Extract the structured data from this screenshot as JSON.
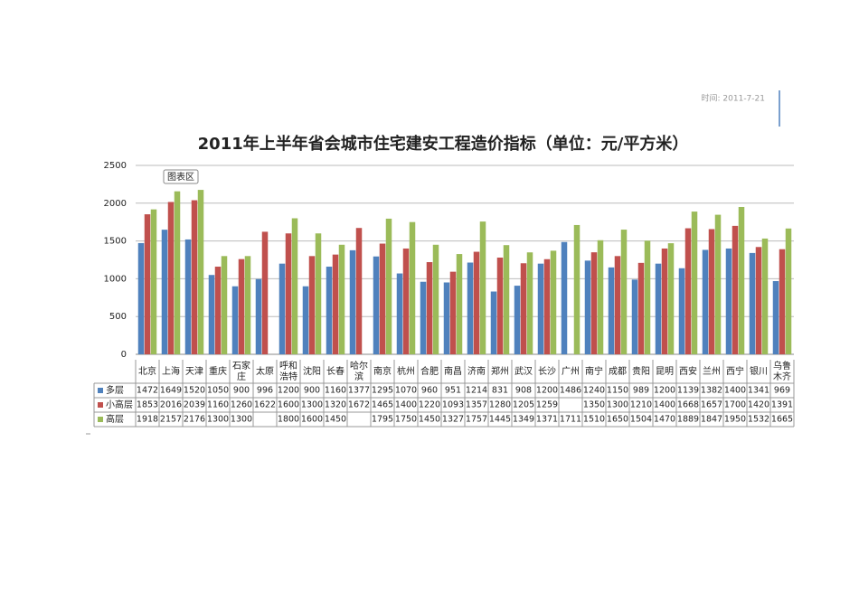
{
  "header": {
    "date": "时间: 2011-7-21"
  },
  "tooltip": "图表区",
  "chart_data": {
    "type": "bar",
    "title": "2011年上半年省会城市住宅建安工程造价指标（单位：元/平方米）",
    "categories": [
      "北京",
      "上海",
      "天津",
      "重庆",
      "石家庄",
      "太原",
      "呼和浩特",
      "沈阳",
      "长春",
      "哈尔滨",
      "南京",
      "杭州",
      "合肥",
      "南昌",
      "济南",
      "郑州",
      "武汉",
      "长沙",
      "广州",
      "南宁",
      "成都",
      "贵阳",
      "昆明",
      "西安",
      "兰州",
      "西宁",
      "银川",
      "乌鲁木齐"
    ],
    "series": [
      {
        "name": "多层",
        "color": "#4f81bd",
        "values": [
          1472,
          1649,
          1520,
          1050,
          900,
          996,
          1200,
          900,
          1160,
          1377,
          1295,
          1070,
          960,
          951,
          1214,
          831,
          908,
          1200,
          1486,
          1240,
          1150,
          989,
          1200,
          1139,
          1382,
          1400,
          1341,
          969
        ]
      },
      {
        "name": "小高层",
        "color": "#c0504d",
        "values": [
          1853,
          2016,
          2039,
          1160,
          1260,
          1622,
          1600,
          1300,
          1320,
          1672,
          1465,
          1400,
          1220,
          1093,
          1357,
          1280,
          1205,
          1259,
          null,
          1350,
          1300,
          1210,
          1400,
          1668,
          1657,
          1700,
          1420,
          1391
        ]
      },
      {
        "name": "高层",
        "color": "#9bbb59",
        "values": [
          1918,
          2157,
          2176,
          1300,
          1300,
          null,
          1800,
          1600,
          1450,
          null,
          1795,
          1750,
          1450,
          1327,
          1757,
          1445,
          1349,
          1371,
          1711,
          1510,
          1650,
          1504,
          1470,
          1889,
          1847,
          1950,
          1532,
          1665
        ]
      }
    ],
    "ylim": [
      0,
      2500
    ],
    "yticks": [
      0,
      500,
      1000,
      1500,
      2000,
      2500
    ],
    "grid": true
  }
}
